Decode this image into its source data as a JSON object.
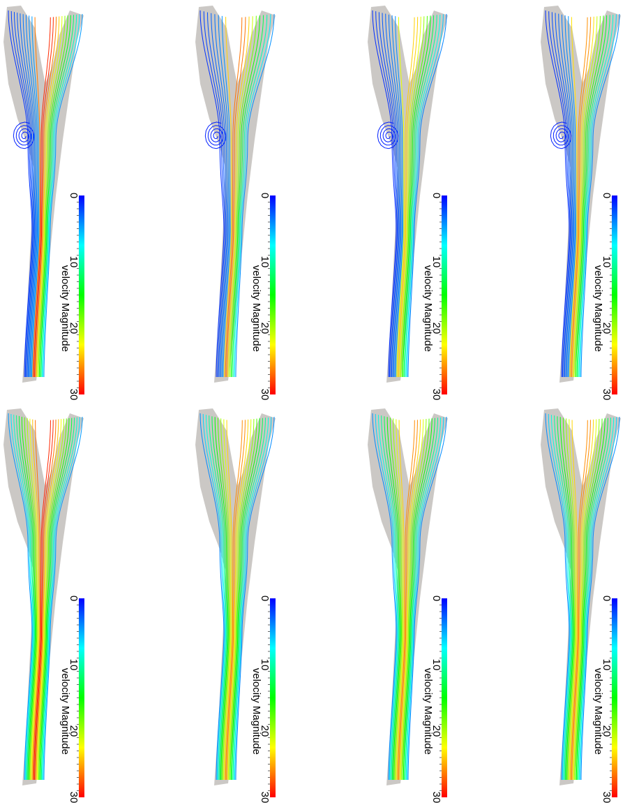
{
  "figure": {
    "layout": "2 rows x 4 columns of rotated streamline plots of bifurcation (Y-junction) flow, each with a vertical velocity colorbar",
    "top_row_style": "streamlines with recirculation vortex in upper-left branch",
    "bottom_row_style": "smooth streamlines without vortex",
    "vessel_fill_color": "#cbc8c5"
  },
  "colorbar": {
    "title": "velocity Magnitude",
    "range": [
      0,
      30
    ],
    "tick_labels": [
      "0",
      "10",
      "20",
      "30"
    ],
    "colormap": [
      "#0000ff",
      "#0080ff",
      "#00ffff",
      "#00ff80",
      "#00ff00",
      "#80ff00",
      "#ffff00",
      "#ff8000",
      "#ff0000"
    ]
  },
  "panels": [
    {
      "id": "r1c1",
      "row": 1,
      "col": 1,
      "peak_velocity": 30,
      "vortex": true,
      "streamline_count": 22
    },
    {
      "id": "r1c2",
      "row": 1,
      "col": 2,
      "peak_velocity": 28,
      "vortex": true,
      "streamline_count": 18
    },
    {
      "id": "r1c3",
      "row": 1,
      "col": 3,
      "peak_velocity": 25,
      "vortex": true,
      "streamline_count": 20
    },
    {
      "id": "r1c4",
      "row": 1,
      "col": 4,
      "peak_velocity": 27,
      "vortex": true,
      "streamline_count": 20
    },
    {
      "id": "r2c1",
      "row": 2,
      "col": 1,
      "peak_velocity": 30,
      "vortex": false,
      "streamline_count": 24
    },
    {
      "id": "r2c2",
      "row": 2,
      "col": 2,
      "peak_velocity": 27,
      "vortex": false,
      "streamline_count": 22
    },
    {
      "id": "r2c3",
      "row": 2,
      "col": 3,
      "peak_velocity": 27,
      "vortex": false,
      "streamline_count": 22
    },
    {
      "id": "r2c4",
      "row": 2,
      "col": 4,
      "peak_velocity": 27,
      "vortex": false,
      "streamline_count": 22
    }
  ]
}
